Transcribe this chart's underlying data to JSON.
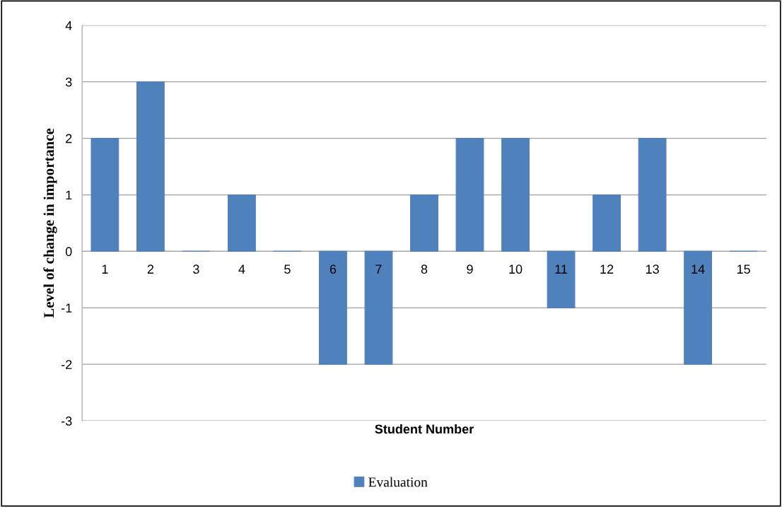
{
  "chart_data": {
    "type": "bar",
    "xlabel": "Student Number",
    "ylabel": "Level of change in importance",
    "categories": [
      "1",
      "2",
      "3",
      "4",
      "5",
      "6",
      "7",
      "8",
      "9",
      "10",
      "11",
      "12",
      "13",
      "14",
      "15"
    ],
    "series": [
      {
        "name": "Evaluation",
        "color": "#4f81bd",
        "values": [
          2,
          3,
          0,
          1,
          0,
          -2,
          -2,
          1,
          2,
          2,
          -1,
          1,
          2,
          -2,
          0
        ]
      }
    ],
    "ylim": [
      -3,
      4
    ],
    "yticks": [
      -3,
      -2,
      -1,
      0,
      1,
      2,
      3,
      4
    ],
    "grid": "y",
    "legend": "bottom"
  }
}
